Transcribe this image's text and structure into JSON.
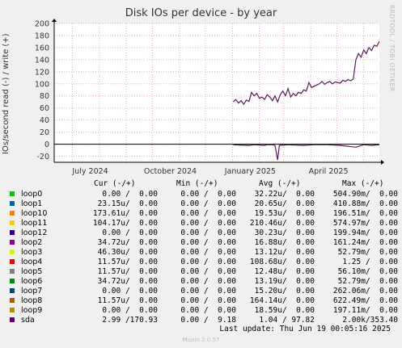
{
  "title": "Disk IOs per device - by year",
  "side_label": "RRDTOOL / TOBI OETIKER",
  "munin_version": "Munin 2.0.57",
  "last_update": "Last update: Thu Jun 19 00:05:16 2025",
  "chart_data": {
    "type": "line",
    "title": "Disk IOs per device - by year",
    "ylabel": "IOs/second read (-) / write (+)",
    "ylim": [
      -30,
      200
    ],
    "yticks": [
      -20,
      0,
      20,
      40,
      60,
      80,
      100,
      120,
      140,
      160,
      180,
      200
    ],
    "xticks": [
      "July 2024",
      "October 2024",
      "January 2025",
      "April 2025"
    ],
    "grid": true,
    "series": [
      {
        "name": "sda",
        "color": "#5a1a5e",
        "write_points": [
          [
            "2025-01-02",
            70
          ],
          [
            "2025-01-05",
            74
          ],
          [
            "2025-01-08",
            68
          ],
          [
            "2025-01-11",
            72
          ],
          [
            "2025-01-14",
            66
          ],
          [
            "2025-01-17",
            73
          ],
          [
            "2025-01-20",
            71
          ],
          [
            "2025-01-23",
            86
          ],
          [
            "2025-01-26",
            80
          ],
          [
            "2025-01-29",
            84
          ],
          [
            "2025-02-01",
            76
          ],
          [
            "2025-02-04",
            78
          ],
          [
            "2025-02-07",
            74
          ],
          [
            "2025-02-10",
            82
          ],
          [
            "2025-02-13",
            78
          ],
          [
            "2025-02-16",
            72
          ],
          [
            "2025-02-19",
            80
          ],
          [
            "2025-02-22",
            70
          ],
          [
            "2025-02-25",
            82
          ],
          [
            "2025-02-28",
            88
          ],
          [
            "2025-03-03",
            80
          ],
          [
            "2025-03-06",
            92
          ],
          [
            "2025-03-09",
            78
          ],
          [
            "2025-03-12",
            84
          ],
          [
            "2025-03-15",
            80
          ],
          [
            "2025-03-18",
            86
          ],
          [
            "2025-03-21",
            84
          ],
          [
            "2025-03-24",
            90
          ],
          [
            "2025-03-27",
            88
          ],
          [
            "2025-03-30",
            102
          ],
          [
            "2025-04-02",
            94
          ],
          [
            "2025-04-05",
            96
          ],
          [
            "2025-04-08",
            98
          ],
          [
            "2025-04-11",
            100
          ],
          [
            "2025-04-14",
            104
          ],
          [
            "2025-04-17",
            99
          ],
          [
            "2025-04-20",
            102
          ],
          [
            "2025-04-23",
            104
          ],
          [
            "2025-04-26",
            100
          ],
          [
            "2025-04-29",
            103
          ],
          [
            "2025-05-02",
            102
          ],
          [
            "2025-05-05",
            101
          ],
          [
            "2025-05-08",
            106
          ],
          [
            "2025-05-11",
            104
          ],
          [
            "2025-05-14",
            107
          ],
          [
            "2025-05-17",
            105
          ],
          [
            "2025-05-20",
            108
          ],
          [
            "2025-05-23",
            140
          ],
          [
            "2025-05-26",
            150
          ],
          [
            "2025-05-29",
            144
          ],
          [
            "2025-06-01",
            156
          ],
          [
            "2025-06-04",
            150
          ],
          [
            "2025-06-07",
            160
          ],
          [
            "2025-06-10",
            155
          ],
          [
            "2025-06-13",
            164
          ],
          [
            "2025-06-16",
            162
          ],
          [
            "2025-06-19",
            170
          ]
        ],
        "read_points": [
          [
            "2025-01-02",
            -1
          ],
          [
            "2025-01-20",
            -2
          ],
          [
            "2025-01-26",
            -1
          ],
          [
            "2025-02-07",
            -2
          ],
          [
            "2025-02-10",
            -1
          ],
          [
            "2025-02-16",
            -1
          ],
          [
            "2025-02-19",
            -2
          ],
          [
            "2025-02-22",
            -26
          ],
          [
            "2025-02-24",
            -2
          ],
          [
            "2025-03-06",
            -1
          ],
          [
            "2025-03-24",
            -2
          ],
          [
            "2025-04-05",
            -1
          ],
          [
            "2025-04-20",
            -1
          ],
          [
            "2025-05-05",
            -2
          ],
          [
            "2025-05-23",
            -5
          ],
          [
            "2025-06-01",
            -1
          ],
          [
            "2025-06-10",
            -2
          ],
          [
            "2025-06-19",
            -1
          ]
        ]
      }
    ]
  },
  "legend": {
    "header": {
      "cur": "Cur (-/+)",
      "min": "Min (-/+)",
      "avg": "Avg (-/+)",
      "max": "Max (-/+)"
    },
    "rows": [
      {
        "name": "loop0",
        "color": "#00cc00",
        "cur": "0.00 /  0.00",
        "min": "0.00 /  0.00",
        "avg": "32.22u/  0.00",
        "max": "504.90m/  0.00"
      },
      {
        "name": "loop1",
        "color": "#0066b3",
        "cur": "23.15u/  0.00",
        "min": "0.00 /  0.00",
        "avg": "20.65u/  0.00",
        "max": "410.88m/  0.00"
      },
      {
        "name": "loop10",
        "color": "#ff8000",
        "cur": "173.61u/  0.00",
        "min": "0.00 /  0.00",
        "avg": "19.53u/  0.00",
        "max": "196.51m/  0.00"
      },
      {
        "name": "loop11",
        "color": "#ffcc00",
        "cur": "104.17u/  0.00",
        "min": "0.00 /  0.00",
        "avg": "210.46u/  0.00",
        "max": "574.97m/  0.00"
      },
      {
        "name": "loop12",
        "color": "#330099",
        "cur": "0.00 /  0.00",
        "min": "0.00 /  0.00",
        "avg": "30.23u/  0.00",
        "max": "199.94m/  0.00"
      },
      {
        "name": "loop2",
        "color": "#990099",
        "cur": "34.72u/  0.00",
        "min": "0.00 /  0.00",
        "avg": "16.88u/  0.00",
        "max": "161.24m/  0.00"
      },
      {
        "name": "loop3",
        "color": "#ccff00",
        "cur": "46.30u/  0.00",
        "min": "0.00 /  0.00",
        "avg": "13.12u/  0.00",
        "max": "52.79m/  0.00"
      },
      {
        "name": "loop4",
        "color": "#ff0000",
        "cur": "11.57u/  0.00",
        "min": "0.00 /  0.00",
        "avg": "108.68u/  0.00",
        "max": "1.25 /  0.00"
      },
      {
        "name": "loop5",
        "color": "#808080",
        "cur": "11.57u/  0.00",
        "min": "0.00 /  0.00",
        "avg": "12.48u/  0.00",
        "max": "56.10m/  0.00"
      },
      {
        "name": "loop6",
        "color": "#008f00",
        "cur": "34.72u/  0.00",
        "min": "0.00 /  0.00",
        "avg": "13.19u/  0.00",
        "max": "52.79m/  0.00"
      },
      {
        "name": "loop7",
        "color": "#00487d",
        "cur": "0.00 /  0.00",
        "min": "0.00 /  0.00",
        "avg": "15.20u/  0.00",
        "max": "262.06m/  0.00"
      },
      {
        "name": "loop8",
        "color": "#b35a00",
        "cur": "11.57u/  0.00",
        "min": "0.00 /  0.00",
        "avg": "164.14u/  0.00",
        "max": "622.49m/  0.00"
      },
      {
        "name": "loop9",
        "color": "#b38f00",
        "cur": "0.00 /  0.00",
        "min": "0.00 /  0.00",
        "avg": "18.59u/  0.00",
        "max": "197.11m/  0.00"
      },
      {
        "name": "sda",
        "color": "#6b006b",
        "cur": "2.99 /170.93",
        "min": "0.00 /  9.18",
        "avg": "1.04 / 97.82",
        "max": "2.00k/353.40"
      }
    ]
  }
}
